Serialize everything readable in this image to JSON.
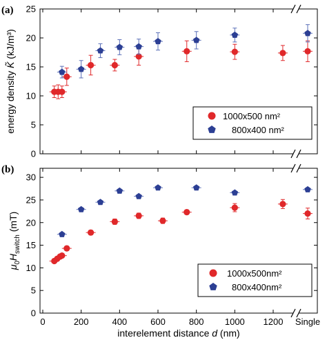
{
  "colors": {
    "red_series": "#e0282a",
    "blue_series": "#2c3f94",
    "errbar_red": "#e0282a",
    "errbar_blue": "#5a6fb8"
  },
  "x_axis": {
    "label_prefix": "interelement distance ",
    "label_var": "d",
    "label_suffix": " (nm)",
    "ticks": [
      "0",
      "200",
      "400",
      "600",
      "800",
      "1000",
      "1200"
    ],
    "single_label": "Single",
    "range": [
      0,
      1300
    ]
  },
  "chart_data": [
    {
      "type": "scatter",
      "panel_label": "(a)",
      "ylabel_prefix": "energy density ",
      "ylabel_var": "K̃",
      "ylabel_suffix": " (kJ/m³)",
      "ylim": [
        0,
        25
      ],
      "yticks": [
        "0",
        "5",
        "10",
        "15",
        "20",
        "25"
      ],
      "legend_position": "bottom-right",
      "series": [
        {
          "name": "1000x500 nm²",
          "marker": "circle",
          "points": [
            {
              "x": 60,
              "y": 10.7,
              "err": 1.0
            },
            {
              "x": 80,
              "y": 10.7,
              "err": 1.2
            },
            {
              "x": 100,
              "y": 10.7,
              "err": 1.0
            },
            {
              "x": 125,
              "y": 13.3,
              "err": 1.5
            },
            {
              "x": 250,
              "y": 15.3,
              "err": 1.7
            },
            {
              "x": 375,
              "y": 15.3,
              "err": 1.0
            },
            {
              "x": 500,
              "y": 16.8,
              "err": 1.5
            },
            {
              "x": 750,
              "y": 17.7,
              "err": 1.8
            },
            {
              "x": 1000,
              "y": 17.6,
              "err": 1.3
            },
            {
              "x": 1250,
              "y": 17.4,
              "err": 1.3
            },
            {
              "x": "Single",
              "y": 17.7,
              "err": 1.8
            }
          ]
        },
        {
          "name": "800x400 nm²",
          "marker": "pentagon",
          "points": [
            {
              "x": 100,
              "y": 14.1,
              "err": 1.0
            },
            {
              "x": 200,
              "y": 14.6,
              "err": 1.5
            },
            {
              "x": 300,
              "y": 17.8,
              "err": 1.2
            },
            {
              "x": 400,
              "y": 18.4,
              "err": 1.3
            },
            {
              "x": 500,
              "y": 18.5,
              "err": 1.3
            },
            {
              "x": 600,
              "y": 19.4,
              "err": 1.5
            },
            {
              "x": 800,
              "y": 19.6,
              "err": 1.5
            },
            {
              "x": 1000,
              "y": 20.5,
              "err": 1.2
            },
            {
              "x": "Single",
              "y": 20.8,
              "err": 1.5
            }
          ]
        }
      ]
    },
    {
      "type": "scatter",
      "panel_label": "(b)",
      "ylabel_mu": "μ",
      "ylabel_sub0": "0",
      "ylabel_H": "H",
      "ylabel_sub": "switch",
      "ylabel_suffix": " (mT)",
      "ylim": [
        0,
        32
      ],
      "yticks": [
        "0",
        "5",
        "10",
        "15",
        "20",
        "25",
        "30"
      ],
      "legend_position": "bottom-right",
      "series": [
        {
          "name": "1000x500nm²",
          "marker": "circle",
          "points": [
            {
              "x": 60,
              "y": 11.5,
              "err": 0.4
            },
            {
              "x": 75,
              "y": 12.0,
              "err": 0.4
            },
            {
              "x": 90,
              "y": 12.5,
              "err": 0.4
            },
            {
              "x": 100,
              "y": 12.7,
              "err": 0.4
            },
            {
              "x": 125,
              "y": 14.3,
              "err": 0.5
            },
            {
              "x": 250,
              "y": 17.8,
              "err": 0.5
            },
            {
              "x": 375,
              "y": 20.2,
              "err": 0.6
            },
            {
              "x": 500,
              "y": 21.5,
              "err": 0.6
            },
            {
              "x": 625,
              "y": 20.4,
              "err": 0.6
            },
            {
              "x": 750,
              "y": 22.3,
              "err": 0.5
            },
            {
              "x": 1000,
              "y": 23.3,
              "err": 0.9
            },
            {
              "x": 1250,
              "y": 24.1,
              "err": 1.0
            },
            {
              "x": "Single",
              "y": 22.0,
              "err": 1.2
            }
          ]
        },
        {
          "name": "800x400nm²",
          "marker": "pentagon",
          "points": [
            {
              "x": 100,
              "y": 17.4,
              "err": 0.3
            },
            {
              "x": 200,
              "y": 22.9,
              "err": 0.3
            },
            {
              "x": 300,
              "y": 24.5,
              "err": 0.3
            },
            {
              "x": 400,
              "y": 27.0,
              "err": 0.3
            },
            {
              "x": 500,
              "y": 25.8,
              "err": 0.3
            },
            {
              "x": 600,
              "y": 27.7,
              "err": 0.3
            },
            {
              "x": 800,
              "y": 27.7,
              "err": 0.3
            },
            {
              "x": 1000,
              "y": 26.6,
              "err": 0.3
            },
            {
              "x": "Single",
              "y": 27.3,
              "err": 0.3
            }
          ]
        }
      ]
    }
  ]
}
